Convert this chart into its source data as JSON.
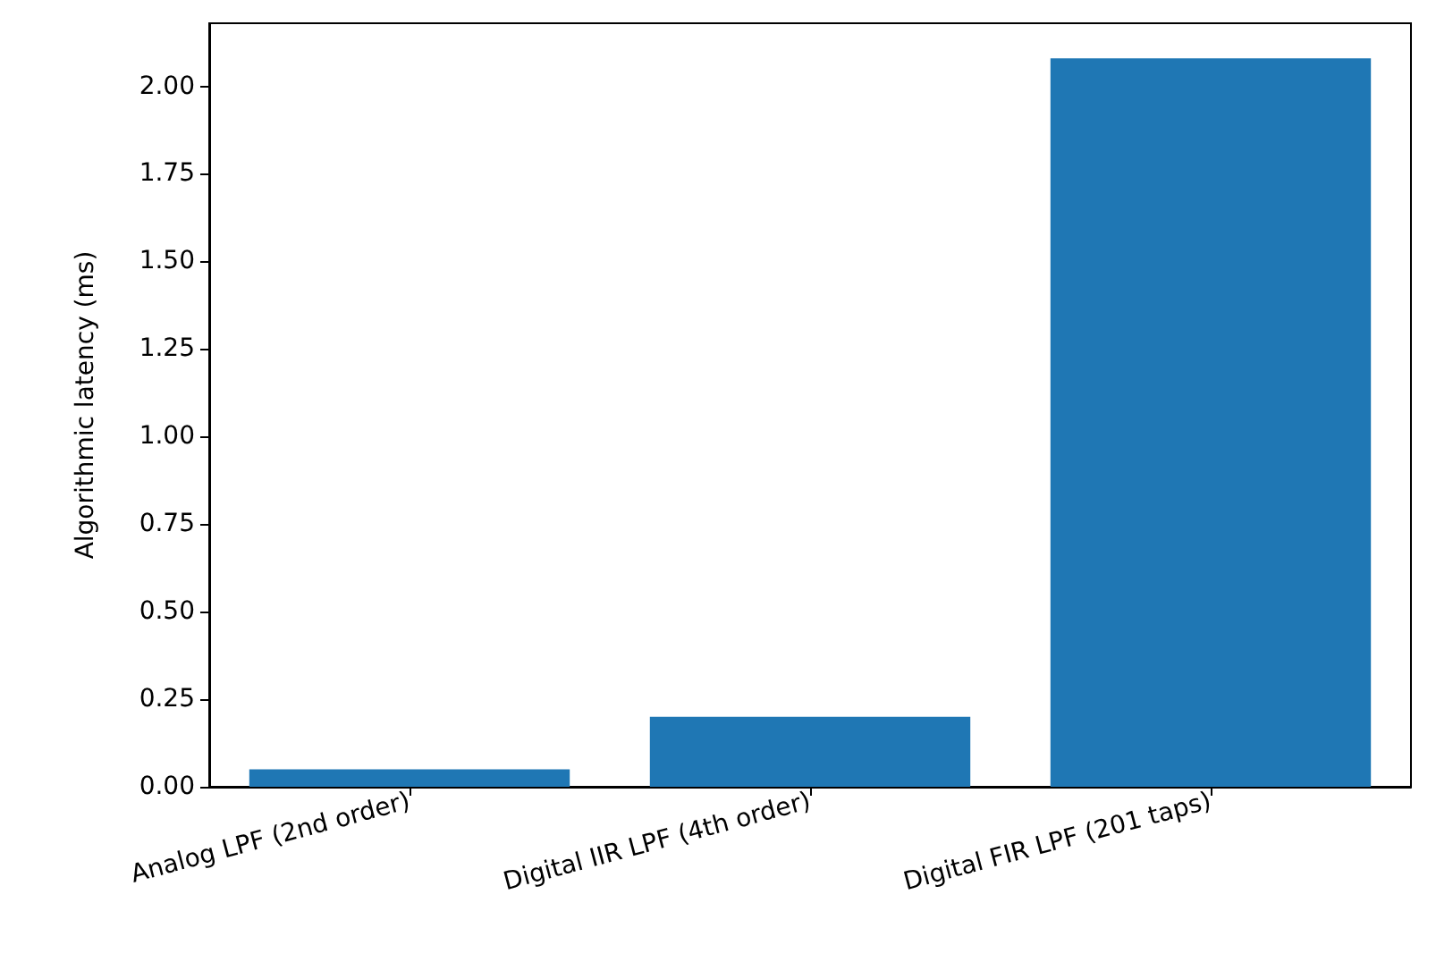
{
  "chart_data": {
    "type": "bar",
    "ylabel": "Algorithmic latency (ms)",
    "categories": [
      "Analog LPF (2nd order)",
      "Digital IIR LPF (4th order)",
      "Digital FIR LPF (201 taps)"
    ],
    "values": [
      0.05,
      0.2,
      2.08
    ],
    "color": "#1f77b4",
    "ylim": [
      0,
      2.18
    ],
    "yticks": [
      {
        "value": 0,
        "label": "0.00"
      },
      {
        "value": 0.25,
        "label": "0.25"
      },
      {
        "value": 0.5,
        "label": "0.50"
      },
      {
        "value": 0.75,
        "label": "0.75"
      },
      {
        "value": 1,
        "label": "1.00"
      },
      {
        "value": 1.25,
        "label": "1.25"
      },
      {
        "value": 1.5,
        "label": "1.50"
      },
      {
        "value": 1.75,
        "label": "1.75"
      },
      {
        "value": 2,
        "label": "2.00"
      }
    ],
    "grid": false
  }
}
